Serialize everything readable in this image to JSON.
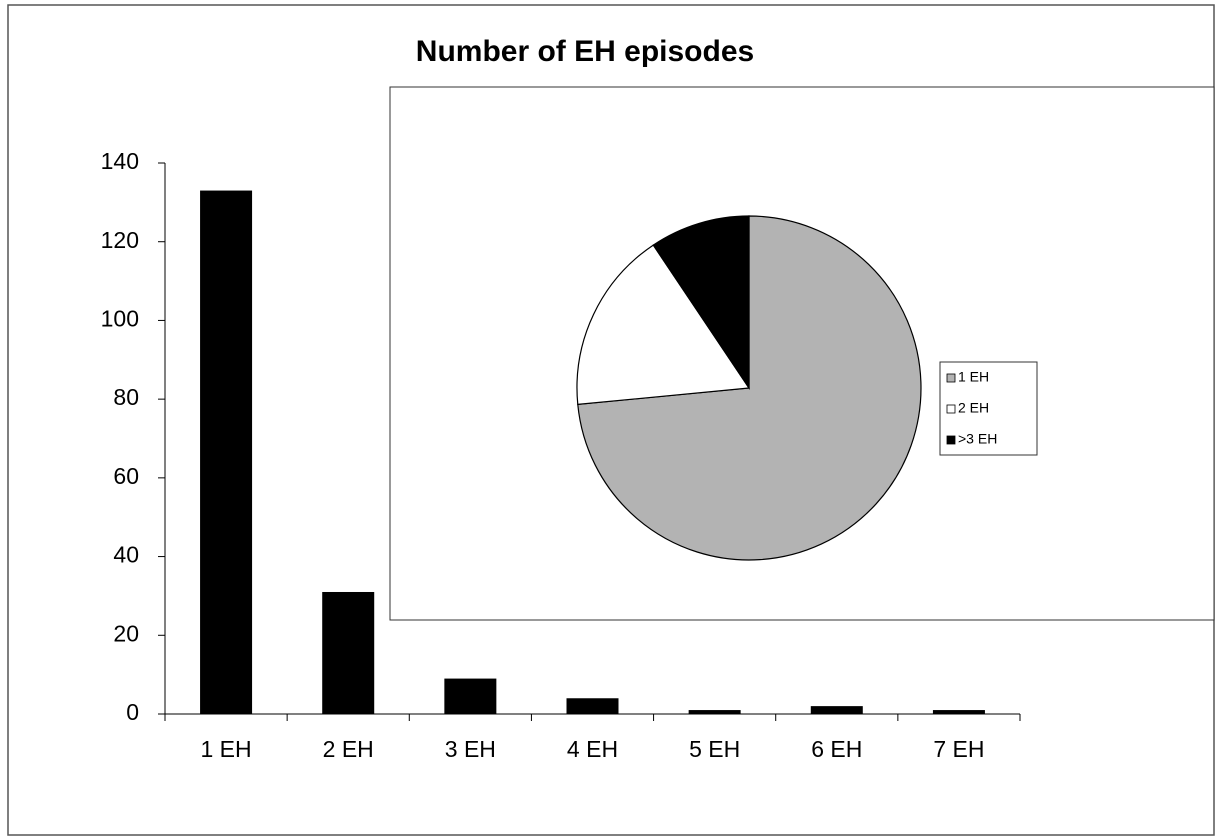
{
  "chart_data": [
    {
      "type": "bar",
      "title": "Number of EH episodes",
      "categories": [
        "1 EH",
        "2 EH",
        "3 EH",
        "4 EH",
        "5 EH",
        "6 EH",
        "7 EH"
      ],
      "values": [
        133,
        31,
        9,
        4,
        1,
        2,
        1
      ],
      "color": "#000000",
      "ylim": [
        0,
        140
      ],
      "yticks": [
        0,
        20,
        40,
        60,
        80,
        100,
        120,
        140
      ]
    },
    {
      "type": "pie",
      "categories": [
        "1 EH",
        "2 EH",
        ">3 EH"
      ],
      "values": [
        133,
        31,
        17
      ],
      "colors": [
        "#b3b3b3",
        "#ffffff",
        "#000000"
      ],
      "legend": "right"
    }
  ]
}
